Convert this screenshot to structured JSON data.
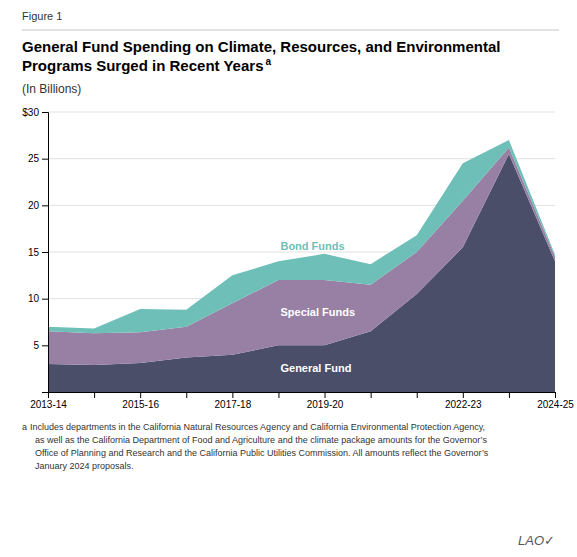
{
  "chart_data": {
    "type": "area",
    "stacked": true,
    "title": "General Fund Spending on Climate, Resources, and Environmental Programs Surged in Recent Years",
    "subtitle": "(In Billions)",
    "annotations": [
      "Figure 1",
      "a",
      "a",
      "Includes departments in the California Natural Resources Agency and California Environmental Protection Agency,\n  as well as the California Department of Food and Agriculture and the climate package amounts for the Governor’s\n  Office of Planning and Research and the California Public Utilities Commission. All amounts reflect the Governor’s\n  January 2024 proposals.",
      "LAO✓"
    ],
    "categories": [
      "2013-14",
      null,
      "2015-16",
      null,
      "2017-18",
      null,
      "2019-20",
      null,
      null,
      "2022-23",
      null,
      "2024-25"
    ],
    "series": [
      {
        "name": "General Fund",
        "color": "#4a4e69",
        "values": [
          3.0,
          2.9,
          3.1,
          3.7,
          4.0,
          5.0,
          5.0,
          6.5,
          10.5,
          15.5,
          25.5,
          14.0
        ]
      },
      {
        "name": "Special Funds",
        "color": "#9880a4",
        "values": [
          3.5,
          3.4,
          3.3,
          3.3,
          5.5,
          7.0,
          7.0,
          5.0,
          4.5,
          5.0,
          0.7,
          0.5
        ]
      },
      {
        "name": "Bond Funds",
        "color": "#6dbfb8",
        "values": [
          0.5,
          0.5,
          2.5,
          1.8,
          3.0,
          2.0,
          2.8,
          2.2,
          1.8,
          4.0,
          0.8,
          0.2
        ]
      }
    ],
    "ylim": [
      0,
      30
    ],
    "yticks": [
      5,
      10,
      15,
      20,
      25,
      {
        "value": 30,
        "label": "$30"
      }
    ],
    "grid": true
  }
}
